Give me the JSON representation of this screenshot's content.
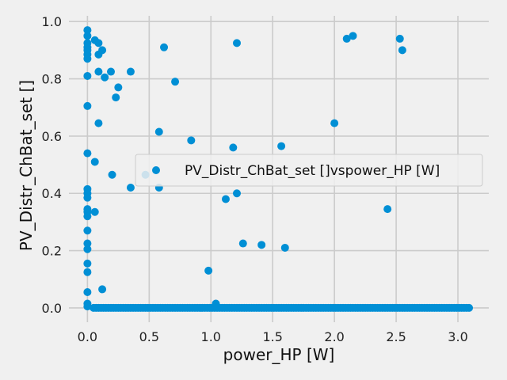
{
  "chart_data": {
    "type": "scatter",
    "title": "",
    "xlabel": "power_HP [W]",
    "ylabel": "PV_Distr_ChBat_set []",
    "xlim": [
      -0.15,
      3.25
    ],
    "ylim": [
      -0.05,
      1.02
    ],
    "xticks": [
      0.0,
      0.5,
      1.0,
      1.5,
      2.0,
      2.5,
      3.0
    ],
    "xtick_labels": [
      "0.0",
      "0.5",
      "1.0",
      "1.5",
      "2.0",
      "2.5",
      "3.0"
    ],
    "yticks": [
      0.0,
      0.2,
      0.4,
      0.6,
      0.8,
      1.0
    ],
    "ytick_labels": [
      "0.0",
      "0.2",
      "0.4",
      "0.6",
      "0.8",
      "1.0"
    ],
    "grid": true,
    "legend_position": "center-right",
    "series": [
      {
        "name": "PV_Distr_ChBat_set []vspower_HP [W]",
        "color": "#008fd5",
        "points": [
          [
            0.0,
            0.97
          ],
          [
            0.0,
            0.95
          ],
          [
            0.0,
            0.925
          ],
          [
            0.0,
            0.91
          ],
          [
            0.0,
            0.9
          ],
          [
            0.0,
            0.885
          ],
          [
            0.0,
            0.87
          ],
          [
            0.0,
            0.81
          ],
          [
            0.0,
            0.705
          ],
          [
            0.0,
            0.54
          ],
          [
            0.0,
            0.415
          ],
          [
            0.0,
            0.4
          ],
          [
            0.0,
            0.385
          ],
          [
            0.0,
            0.345
          ],
          [
            0.0,
            0.335
          ],
          [
            0.0,
            0.32
          ],
          [
            0.0,
            0.27
          ],
          [
            0.0,
            0.225
          ],
          [
            0.0,
            0.205
          ],
          [
            0.0,
            0.155
          ],
          [
            0.0,
            0.125
          ],
          [
            0.0,
            0.055
          ],
          [
            0.0,
            0.015
          ],
          [
            0.0,
            0.005
          ],
          [
            0.06,
            0.935
          ],
          [
            0.09,
            0.925
          ],
          [
            0.09,
            0.885
          ],
          [
            0.12,
            0.9
          ],
          [
            0.09,
            0.825
          ],
          [
            0.14,
            0.805
          ],
          [
            0.19,
            0.825
          ],
          [
            0.35,
            0.825
          ],
          [
            0.62,
            0.91
          ],
          [
            0.71,
            0.79
          ],
          [
            0.25,
            0.77
          ],
          [
            0.23,
            0.735
          ],
          [
            0.09,
            0.645
          ],
          [
            0.06,
            0.51
          ],
          [
            0.06,
            0.335
          ],
          [
            0.2,
            0.465
          ],
          [
            0.35,
            0.42
          ],
          [
            0.47,
            0.465
          ],
          [
            0.58,
            0.615
          ],
          [
            0.58,
            0.42
          ],
          [
            0.84,
            0.585
          ],
          [
            1.21,
            0.925
          ],
          [
            1.18,
            0.56
          ],
          [
            1.21,
            0.4
          ],
          [
            1.12,
            0.38
          ],
          [
            1.26,
            0.225
          ],
          [
            1.41,
            0.22
          ],
          [
            1.57,
            0.565
          ],
          [
            1.6,
            0.21
          ],
          [
            0.98,
            0.13
          ],
          [
            1.04,
            0.015
          ],
          [
            0.12,
            0.065
          ],
          [
            2.0,
            0.645
          ],
          [
            2.1,
            0.94
          ],
          [
            2.15,
            0.95
          ],
          [
            2.53,
            0.94
          ],
          [
            2.55,
            0.9
          ],
          [
            2.43,
            0.345
          ]
        ],
        "baseline_band": {
          "x_from": 0.05,
          "x_to": 3.1,
          "y": 0.0
        }
      }
    ]
  }
}
